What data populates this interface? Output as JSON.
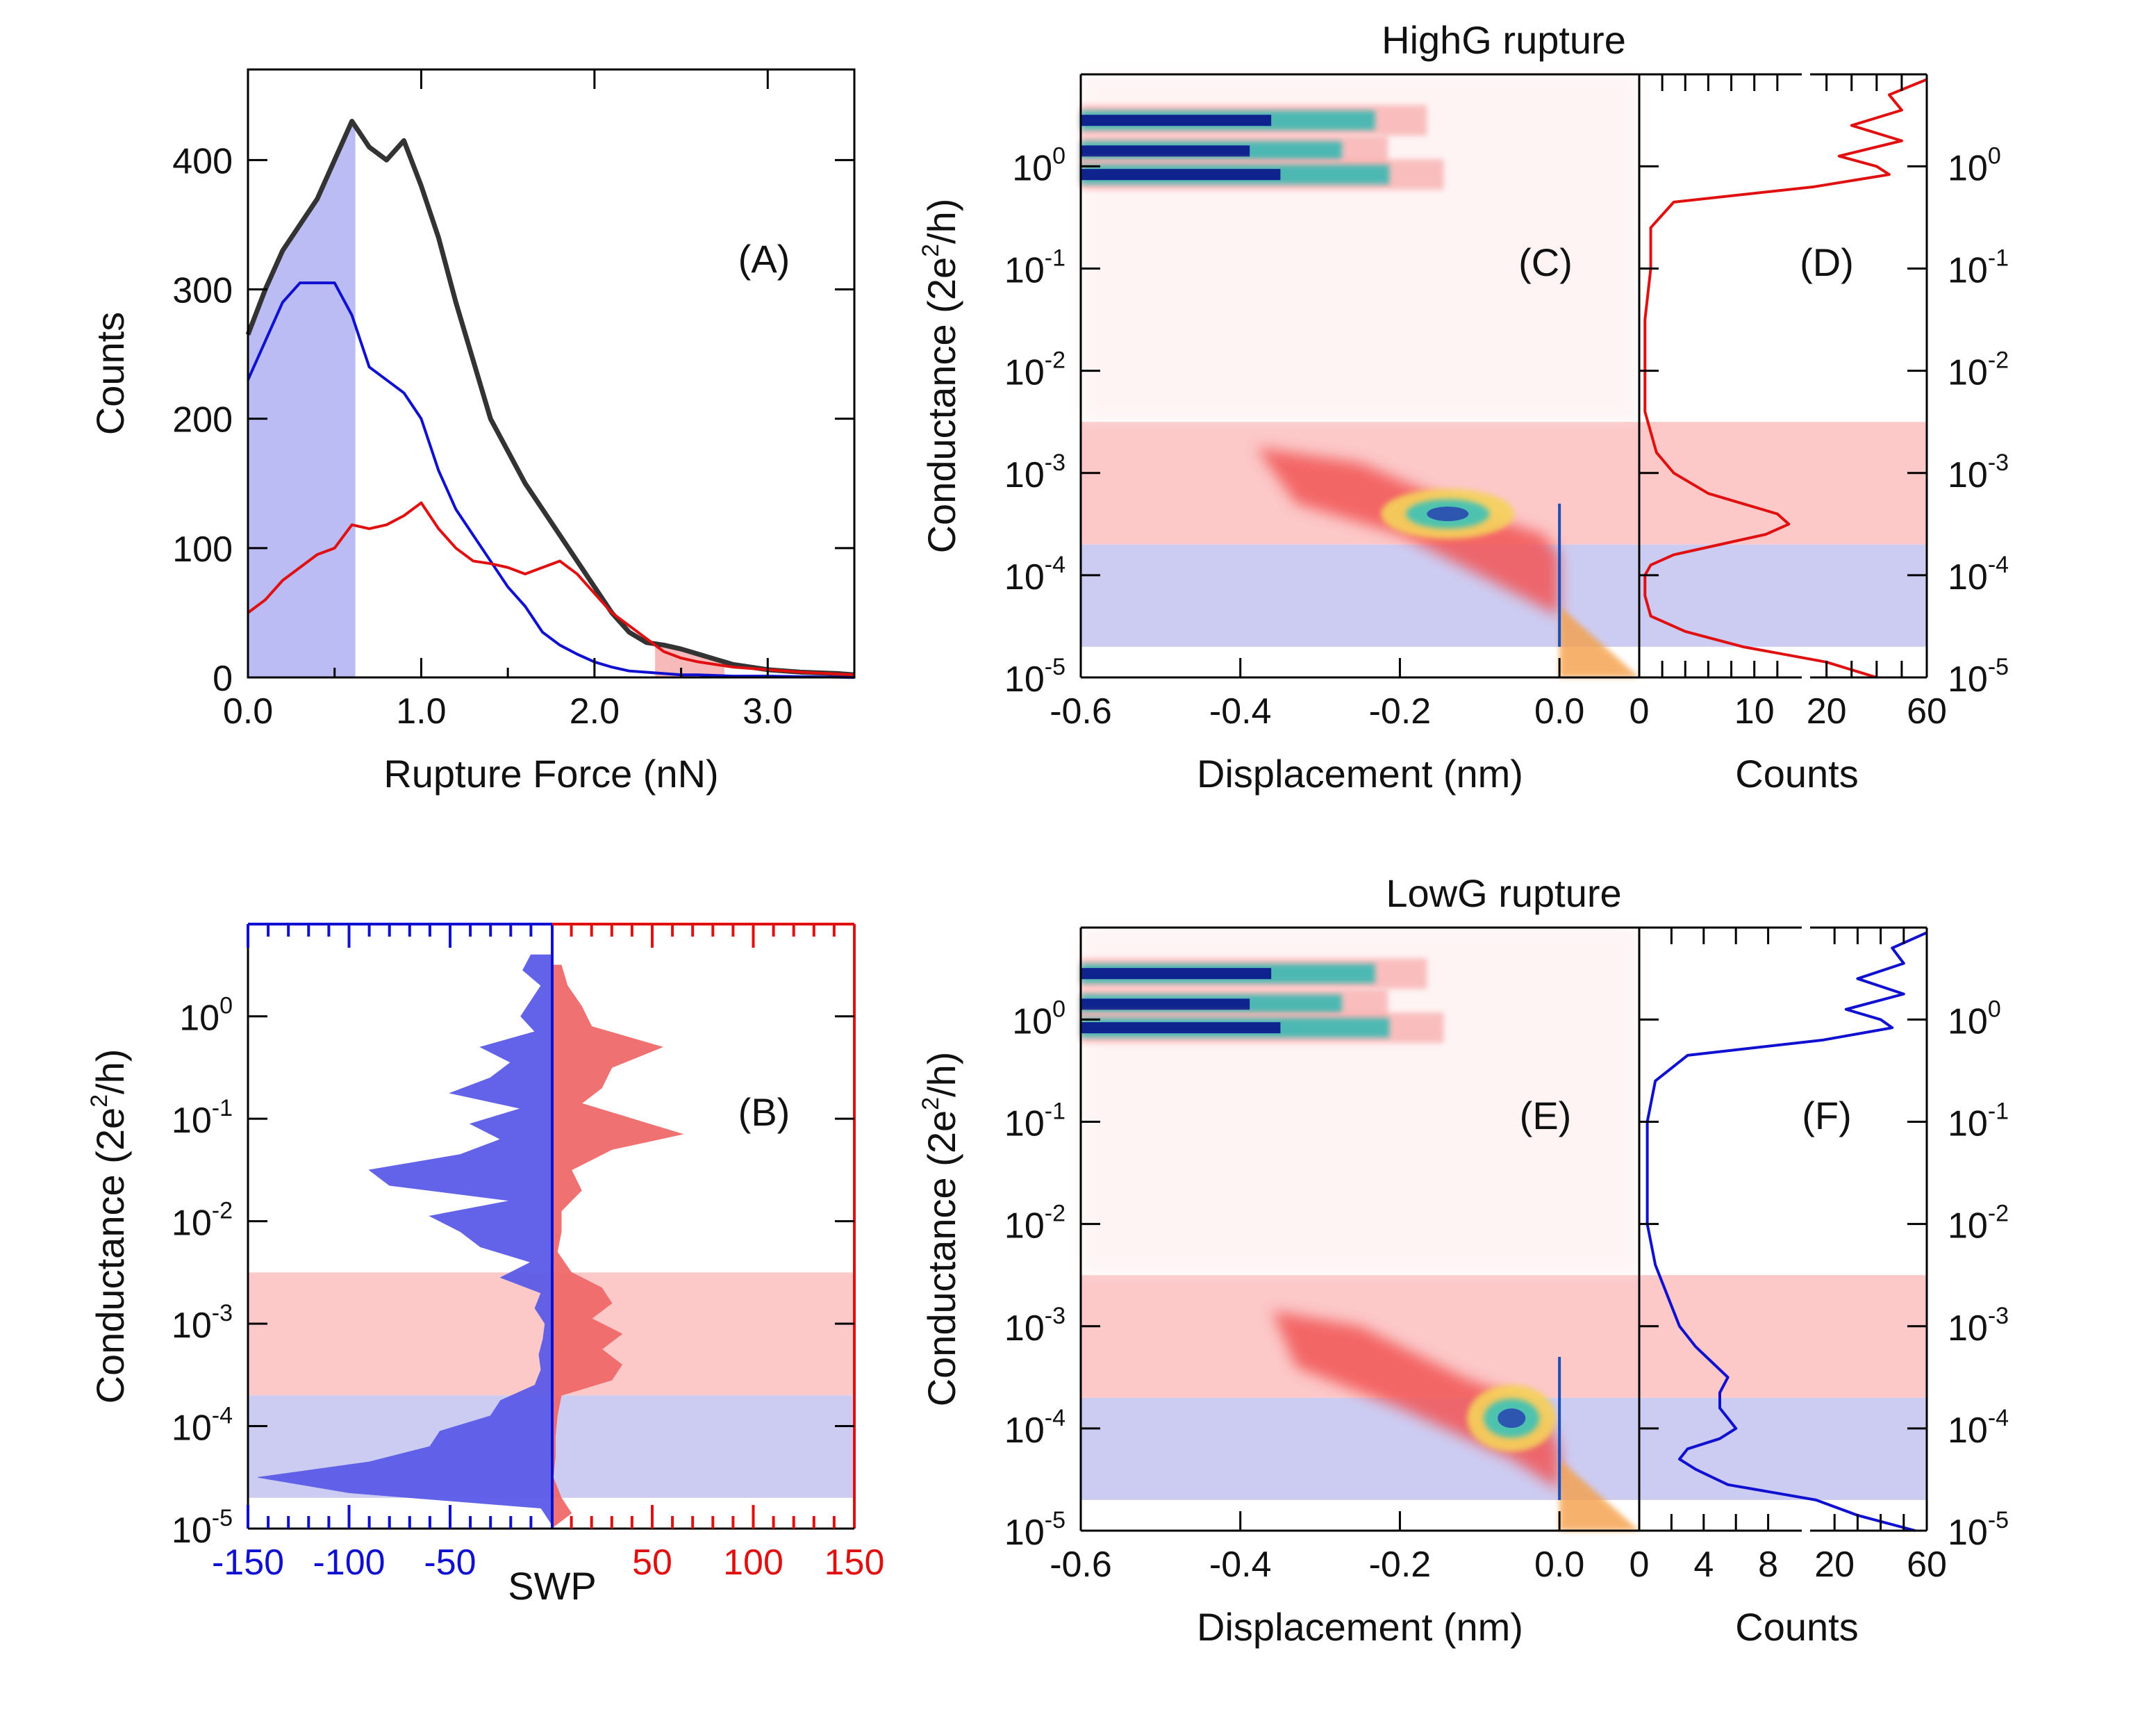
{
  "chart_data": [
    {
      "id": "A",
      "type": "line",
      "panel_label": "(A)",
      "xlabel": "Rupture Force (nN)",
      "ylabel": "Counts",
      "xlim": [
        0,
        3.5
      ],
      "ylim": [
        0,
        470
      ],
      "xticks": [
        0.0,
        1.0,
        2.0,
        3.0
      ],
      "xtick_labels": [
        "0.0",
        "1.0",
        "2.0",
        "3.0"
      ],
      "yticks": [
        0,
        100,
        200,
        300,
        400
      ],
      "ytick_labels": [
        "0",
        "100",
        "200",
        "300",
        "400"
      ],
      "shaded_regions": [
        {
          "name": "low-force-region",
          "x": [
            0,
            0.62
          ],
          "color": "#b8b8f4"
        },
        {
          "name": "high-force-region",
          "x": [
            2.35,
            2.75
          ],
          "color": "#f7b5b5"
        }
      ],
      "series": [
        {
          "name": "total",
          "color": "#333333",
          "x": [
            0,
            0.1,
            0.2,
            0.3,
            0.4,
            0.5,
            0.6,
            0.7,
            0.8,
            0.9,
            1.0,
            1.1,
            1.2,
            1.3,
            1.4,
            1.5,
            1.6,
            1.7,
            1.8,
            1.9,
            2.0,
            2.1,
            2.2,
            2.3,
            2.4,
            2.5,
            2.6,
            2.7,
            2.8,
            2.9,
            3.0,
            3.2,
            3.4,
            3.5
          ],
          "y": [
            265,
            300,
            330,
            350,
            370,
            400,
            430,
            410,
            400,
            415,
            380,
            340,
            290,
            245,
            200,
            175,
            150,
            130,
            110,
            90,
            70,
            50,
            35,
            27,
            25,
            22,
            18,
            14,
            10,
            8,
            6,
            4,
            3,
            2
          ]
        },
        {
          "name": "lowG",
          "color": "#1010d0",
          "x": [
            0,
            0.1,
            0.2,
            0.3,
            0.4,
            0.5,
            0.6,
            0.7,
            0.8,
            0.9,
            1.0,
            1.1,
            1.2,
            1.3,
            1.4,
            1.5,
            1.6,
            1.7,
            1.8,
            1.9,
            2.0,
            2.1,
            2.2,
            2.3,
            2.4,
            2.5,
            2.6,
            2.8,
            3.0,
            3.5
          ],
          "y": [
            230,
            260,
            290,
            305,
            305,
            305,
            280,
            240,
            230,
            220,
            200,
            160,
            130,
            110,
            90,
            70,
            55,
            35,
            25,
            18,
            12,
            8,
            5,
            4,
            3,
            2,
            2,
            1,
            1,
            0
          ]
        },
        {
          "name": "highG",
          "color": "#e01010",
          "x": [
            0,
            0.1,
            0.2,
            0.3,
            0.4,
            0.5,
            0.6,
            0.7,
            0.8,
            0.9,
            1.0,
            1.1,
            1.2,
            1.3,
            1.4,
            1.5,
            1.6,
            1.7,
            1.8,
            1.9,
            2.0,
            2.1,
            2.2,
            2.3,
            2.4,
            2.5,
            2.6,
            2.7,
            2.8,
            3.0,
            3.2,
            3.5
          ],
          "y": [
            50,
            60,
            75,
            85,
            95,
            100,
            118,
            115,
            118,
            125,
            135,
            115,
            100,
            90,
            88,
            85,
            80,
            85,
            90,
            80,
            65,
            50,
            40,
            30,
            20,
            15,
            12,
            10,
            8,
            6,
            4,
            2
          ]
        }
      ]
    },
    {
      "id": "B",
      "type": "area",
      "panel_label": "(B)",
      "xlabel": "SWP",
      "ylabel": "Conductance (2e²/h)",
      "ylabel_parts": {
        "pre": "Conductance (2e",
        "sup": "2",
        "post": "/h)"
      },
      "yscale": "log",
      "ylim_exp": [
        -5,
        0.9
      ],
      "ytick_exps": [
        0,
        -1,
        -2,
        -3,
        -4,
        -5
      ],
      "ytick_base": "10",
      "ytick_sups": [
        "0",
        "-1",
        "-2",
        "-3",
        "-4",
        "-5"
      ],
      "xlim": [
        -150,
        150
      ],
      "xtick_labels_left": [
        "-150",
        "-100",
        "-50"
      ],
      "xtick_values_left": [
        -150,
        -100,
        -50
      ],
      "xtick_labels_right": [
        "50",
        "100",
        "150"
      ],
      "xtick_values_right": [
        50,
        100,
        150
      ],
      "bands": [
        {
          "name": "highG-band",
          "log_range": [
            -3.7,
            -2.5
          ],
          "color": "#fcc8c8"
        },
        {
          "name": "lowG-band",
          "log_range": [
            -4.7,
            -3.7
          ],
          "color": "#ccccf2"
        }
      ],
      "series": [
        {
          "name": "negative-SWP",
          "color": "#5b5be8",
          "logG": [
            0.6,
            0.45,
            0.3,
            0.15,
            0.0,
            -0.15,
            -0.3,
            -0.45,
            -0.6,
            -0.75,
            -0.9,
            -1.05,
            -1.2,
            -1.35,
            -1.5,
            -1.65,
            -1.8,
            -1.95,
            -2.1,
            -2.25,
            -2.4,
            -2.55,
            -2.7,
            -2.85,
            -3.0,
            -3.15,
            -3.3,
            -3.45,
            -3.6,
            -3.75,
            -3.9,
            -4.05,
            -4.2,
            -4.35,
            -4.5,
            -4.65,
            -4.8,
            -4.95
          ],
          "values": [
            -10,
            -14,
            -5,
            -10,
            -15,
            -8,
            -35,
            -20,
            -30,
            -50,
            -15,
            -40,
            -25,
            -45,
            -90,
            -80,
            -20,
            -60,
            -45,
            -35,
            -10,
            -25,
            -5,
            -8,
            -3,
            -4,
            -6,
            -5,
            -8,
            -25,
            -30,
            -55,
            -60,
            -90,
            -145,
            -100,
            -5,
            0
          ]
        },
        {
          "name": "positive-SWP",
          "color": "#f06a6a",
          "logG": [
            0.5,
            0.3,
            0.1,
            -0.1,
            -0.3,
            -0.5,
            -0.7,
            -0.85,
            -1.0,
            -1.15,
            -1.3,
            -1.5,
            -1.7,
            -1.9,
            -2.1,
            -2.3,
            -2.5,
            -2.65,
            -2.8,
            -2.95,
            -3.1,
            -3.25,
            -3.4,
            -3.55,
            -3.7,
            -3.9,
            -4.1,
            -4.3,
            -4.5,
            -4.7,
            -4.85,
            -5.0
          ],
          "values": [
            5,
            8,
            15,
            20,
            55,
            30,
            25,
            15,
            40,
            65,
            30,
            10,
            15,
            5,
            5,
            3,
            10,
            25,
            30,
            20,
            35,
            25,
            35,
            30,
            5,
            3,
            2,
            2,
            1,
            5,
            10,
            0
          ]
        }
      ]
    },
    {
      "id": "C",
      "type": "heatmap",
      "title": "HighG rupture",
      "panel_label": "(C)",
      "xlabel": "Displacement (nm)",
      "ylabel": "Conductance (2e²/h)",
      "ylabel_parts": {
        "pre": "Conductance (2e",
        "sup": "2",
        "post": "/h)"
      },
      "xlim": [
        -0.6,
        0.1
      ],
      "xticks": [
        -0.6,
        -0.4,
        -0.2,
        0.0
      ],
      "xtick_labels": [
        "-0.6",
        "-0.4",
        "-0.2",
        "0.0"
      ],
      "yscale": "log",
      "ylim_exp": [
        -5,
        0.9
      ],
      "ytick_exps": [
        0,
        -1,
        -2,
        -3,
        -4,
        -5
      ],
      "ytick_base": "10",
      "ytick_sups": [
        "0",
        "-1",
        "-2",
        "-3",
        "-4",
        "-5"
      ],
      "bands": [
        {
          "name": "highG-band",
          "log_range": [
            -3.7,
            -2.5
          ],
          "color": "#fcc8c8"
        },
        {
          "name": "lowG-band",
          "log_range": [
            -4.7,
            -3.7
          ],
          "color": "#ccccf2"
        }
      ],
      "hotspots": [
        {
          "x": -0.45,
          "logG": 0.45,
          "intensity": "high"
        },
        {
          "x": -0.45,
          "logG": 0.2,
          "intensity": "high"
        },
        {
          "x": -0.4,
          "logG": -0.08,
          "intensity": "high"
        },
        {
          "x": -0.15,
          "logG": -3.4,
          "intensity": "high"
        },
        {
          "x": -0.05,
          "logG": -3.9,
          "intensity": "medium"
        }
      ]
    },
    {
      "id": "D",
      "type": "line",
      "panel_label": "(D)",
      "xlabel": "Counts",
      "xtick_labels": [
        "0",
        "10",
        "20",
        "60"
      ],
      "yscale": "log",
      "ylim_exp": [
        -5,
        0.9
      ],
      "ytick_exps": [
        0,
        -1,
        -2,
        -3,
        -4,
        -5
      ],
      "ytick_base": "10",
      "ytick_sups": [
        "0",
        "-1",
        "-2",
        "-3",
        "-4",
        "-5"
      ],
      "series": [
        {
          "name": "highG-1d-hist",
          "color": "#e01010",
          "logG": [
            0.85,
            0.7,
            0.55,
            0.4,
            0.25,
            0.1,
            0.0,
            -0.08,
            -0.2,
            -0.35,
            -0.6,
            -1.0,
            -1.5,
            -2.0,
            -2.4,
            -2.8,
            -3.0,
            -3.2,
            -3.3,
            -3.4,
            -3.5,
            -3.6,
            -3.7,
            -3.8,
            -3.9,
            -4.0,
            -4.2,
            -4.4,
            -4.55,
            -4.7,
            -4.85,
            -5.0
          ],
          "counts": [
            60,
            45,
            50,
            30,
            50,
            25,
            40,
            45,
            15,
            3,
            1,
            1,
            0.5,
            0.5,
            0.5,
            1.5,
            3,
            6,
            9,
            12,
            13,
            11,
            7,
            3,
            1,
            0.5,
            0.5,
            1,
            4,
            9,
            20,
            40
          ]
        }
      ]
    },
    {
      "id": "E",
      "type": "heatmap",
      "title": "LowG rupture",
      "panel_label": "(E)",
      "xlabel": "Displacement (nm)",
      "ylabel": "Conductance (2e²/h)",
      "ylabel_parts": {
        "pre": "Conductance (2e",
        "sup": "2",
        "post": "/h)"
      },
      "xlim": [
        -0.6,
        0.1
      ],
      "xticks": [
        -0.6,
        -0.4,
        -0.2,
        0.0
      ],
      "xtick_labels": [
        "-0.6",
        "-0.4",
        "-0.2",
        "0.0"
      ],
      "yscale": "log",
      "ylim_exp": [
        -5,
        0.9
      ],
      "ytick_exps": [
        0,
        -1,
        -2,
        -3,
        -4,
        -5
      ],
      "ytick_base": "10",
      "ytick_sups": [
        "0",
        "-1",
        "-2",
        "-3",
        "-4",
        "-5"
      ],
      "bands": [
        {
          "name": "highG-band",
          "log_range": [
            -3.7,
            -2.5
          ],
          "color": "#fcc8c8"
        },
        {
          "name": "lowG-band",
          "log_range": [
            -4.7,
            -3.7
          ],
          "color": "#ccccf2"
        }
      ],
      "hotspots": [
        {
          "x": -0.45,
          "logG": 0.45,
          "intensity": "high"
        },
        {
          "x": -0.45,
          "logG": 0.2,
          "intensity": "high"
        },
        {
          "x": -0.4,
          "logG": -0.08,
          "intensity": "high"
        },
        {
          "x": -0.06,
          "logG": -3.9,
          "intensity": "high"
        },
        {
          "x": -0.02,
          "logG": -4.2,
          "intensity": "medium"
        }
      ]
    },
    {
      "id": "F",
      "type": "line",
      "panel_label": "(F)",
      "xlabel": "Counts",
      "xtick_labels": [
        "0",
        "4",
        "8",
        "20",
        "60"
      ],
      "yscale": "log",
      "ylim_exp": [
        -5,
        0.9
      ],
      "ytick_exps": [
        0,
        -1,
        -2,
        -3,
        -4,
        -5
      ],
      "ytick_base": "10",
      "ytick_sups": [
        "0",
        "-1",
        "-2",
        "-3",
        "-4",
        "-5"
      ],
      "series": [
        {
          "name": "lowG-1d-hist",
          "color": "#1010d0",
          "logG": [
            0.85,
            0.7,
            0.55,
            0.4,
            0.25,
            0.1,
            0.0,
            -0.08,
            -0.2,
            -0.35,
            -0.6,
            -1.0,
            -1.5,
            -2.0,
            -2.4,
            -2.8,
            -3.0,
            -3.2,
            -3.35,
            -3.5,
            -3.65,
            -3.8,
            -3.9,
            -4.0,
            -4.1,
            -4.2,
            -4.3,
            -4.4,
            -4.55,
            -4.7,
            -4.85,
            -5.0
          ],
          "counts": [
            60,
            45,
            50,
            30,
            50,
            25,
            40,
            45,
            15,
            3,
            1,
            0.5,
            0.5,
            0.5,
            1,
            2,
            2.5,
            3.5,
            4.5,
            5.5,
            5,
            5,
            5.5,
            6,
            5,
            3,
            2.5,
            3.5,
            5.5,
            12,
            30,
            55
          ]
        }
      ]
    }
  ]
}
